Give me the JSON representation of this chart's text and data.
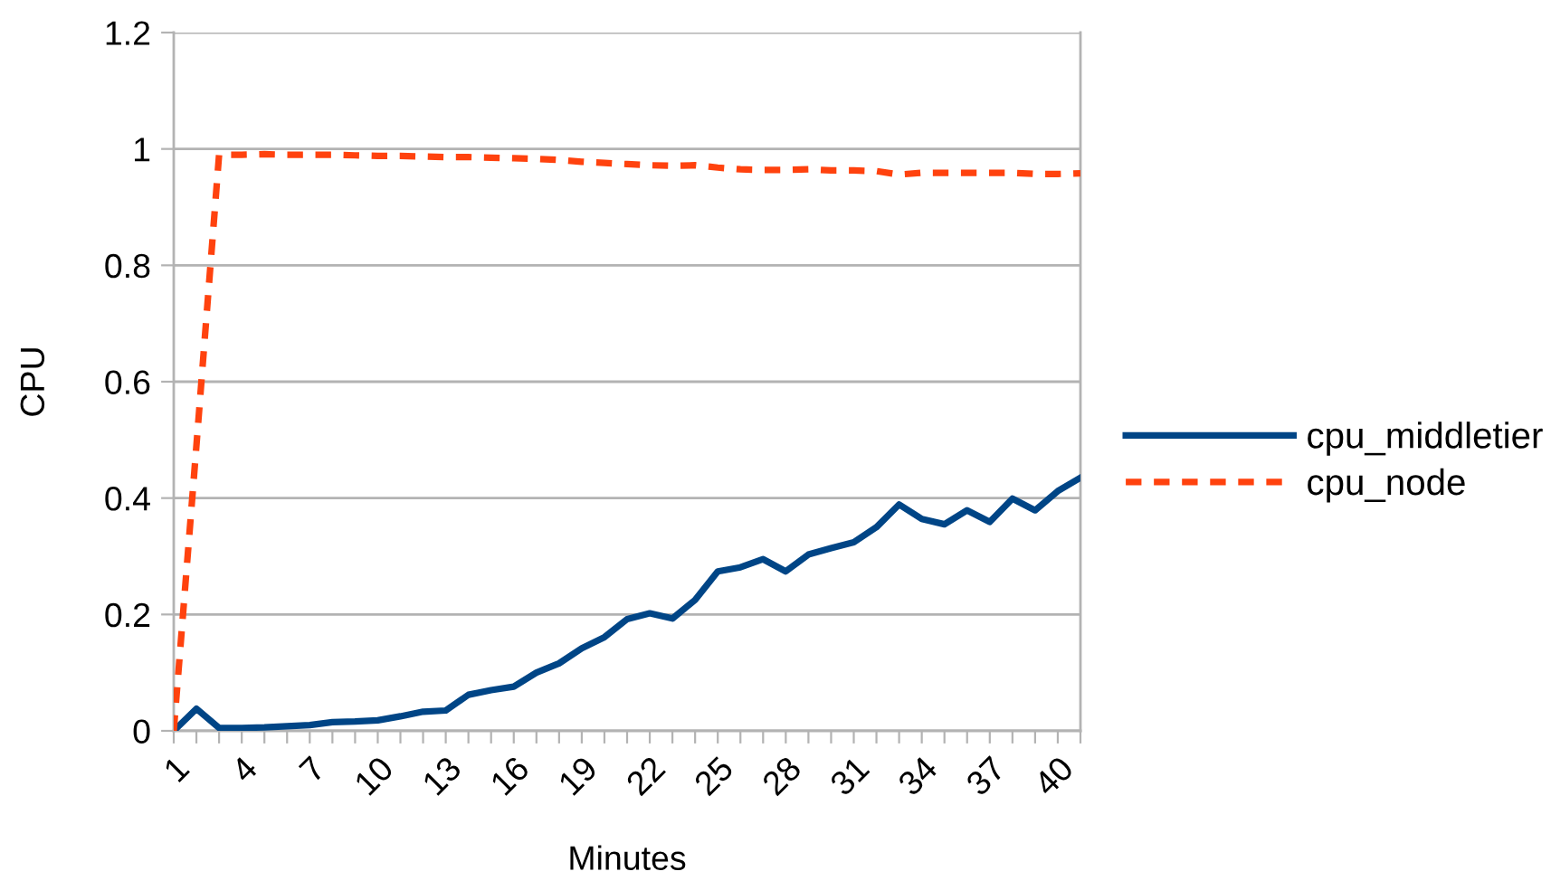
{
  "chart_data": {
    "type": "line",
    "xlabel": "Minutes",
    "ylabel": "CPU",
    "categories": [
      "1",
      null,
      null,
      "4",
      null,
      null,
      "7",
      null,
      null,
      "10",
      null,
      null,
      "13",
      null,
      null,
      "16",
      null,
      null,
      "19",
      null,
      null,
      "22",
      null,
      null,
      "25",
      null,
      null,
      "28",
      null,
      null,
      "31",
      null,
      null,
      "34",
      null,
      null,
      "37",
      null,
      null,
      "40",
      null
    ],
    "ylim": [
      0,
      1.2
    ],
    "yticks": [
      0,
      0.2,
      0.4,
      0.6,
      0.8,
      1,
      1.2
    ],
    "grid": "y",
    "legend": "right",
    "series": [
      {
        "name": "cpu_middletier",
        "color": "#004586",
        "line_style": "solid",
        "values": [
          0,
          0.038,
          0.005,
          0.005,
          0.006,
          0.008,
          0.01,
          0.015,
          0.016,
          0.018,
          0.025,
          0.033,
          0.035,
          0.062,
          0.07,
          0.076,
          0.1,
          0.116,
          0.142,
          0.161,
          0.192,
          0.202,
          0.193,
          0.225,
          0.274,
          0.281,
          0.295,
          0.274,
          0.303,
          0.314,
          0.324,
          0.35,
          0.389,
          0.364,
          0.355,
          0.379,
          0.359,
          0.399,
          0.379,
          0.412,
          0.435
        ]
      },
      {
        "name": "cpu_node",
        "color": "#ff420e",
        "line_style": "dashed",
        "values": [
          0,
          0.49,
          0.99,
          0.99,
          0.991,
          0.99,
          0.99,
          0.99,
          0.989,
          0.988,
          0.988,
          0.987,
          0.986,
          0.986,
          0.985,
          0.984,
          0.983,
          0.981,
          0.978,
          0.976,
          0.974,
          0.972,
          0.971,
          0.972,
          0.968,
          0.965,
          0.964,
          0.964,
          0.965,
          0.963,
          0.963,
          0.962,
          0.956,
          0.959,
          0.959,
          0.959,
          0.959,
          0.959,
          0.957,
          0.957,
          0.958
        ]
      }
    ]
  }
}
